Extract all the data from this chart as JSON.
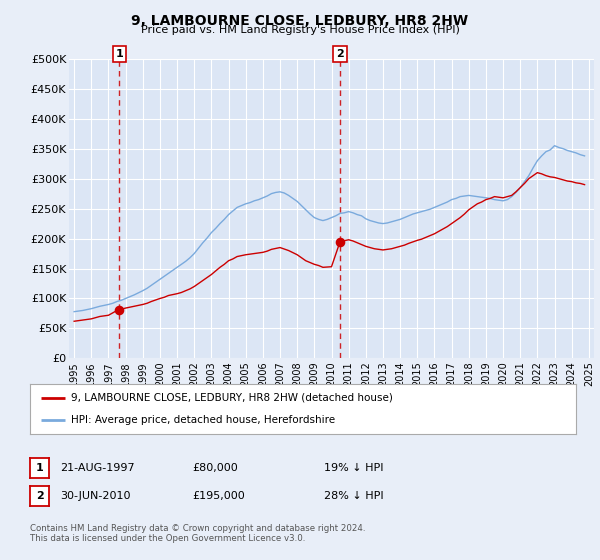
{
  "title": "9, LAMBOURNE CLOSE, LEDBURY, HR8 2HW",
  "subtitle": "Price paid vs. HM Land Registry's House Price Index (HPI)",
  "legend_line1": "9, LAMBOURNE CLOSE, LEDBURY, HR8 2HW (detached house)",
  "legend_line2": "HPI: Average price, detached house, Herefordshire",
  "sale1_date": "21-AUG-1997",
  "sale1_price": "£80,000",
  "sale1_hpi": "19% ↓ HPI",
  "sale1_year": 1997.64,
  "sale1_value": 80000,
  "sale2_date": "30-JUN-2010",
  "sale2_price": "£195,000",
  "sale2_hpi": "28% ↓ HPI",
  "sale2_year": 2010.5,
  "sale2_value": 195000,
  "ylim": [
    0,
    500000
  ],
  "yticks": [
    0,
    50000,
    100000,
    150000,
    200000,
    250000,
    300000,
    350000,
    400000,
    450000,
    500000
  ],
  "xlim_start": 1994.7,
  "xlim_end": 2025.3,
  "bg_color": "#e8eef8",
  "plot_bg_color": "#dce6f5",
  "grid_color": "#ffffff",
  "red_line_color": "#cc0000",
  "blue_line_color": "#7aaadd",
  "vline_color": "#cc0000",
  "footer": "Contains HM Land Registry data © Crown copyright and database right 2024.\nThis data is licensed under the Open Government Licence v3.0.",
  "hpi_years": [
    1995,
    1995.25,
    1995.5,
    1995.75,
    1996,
    1996.25,
    1996.5,
    1996.75,
    1997,
    1997.25,
    1997.5,
    1997.75,
    1998,
    1998.25,
    1998.5,
    1998.75,
    1999,
    1999.25,
    1999.5,
    1999.75,
    2000,
    2000.25,
    2000.5,
    2000.75,
    2001,
    2001.25,
    2001.5,
    2001.75,
    2002,
    2002.25,
    2002.5,
    2002.75,
    2003,
    2003.25,
    2003.5,
    2003.75,
    2004,
    2004.25,
    2004.5,
    2004.75,
    2005,
    2005.25,
    2005.5,
    2005.75,
    2006,
    2006.25,
    2006.5,
    2006.75,
    2007,
    2007.25,
    2007.5,
    2007.75,
    2008,
    2008.25,
    2008.5,
    2008.75,
    2009,
    2009.25,
    2009.5,
    2009.75,
    2010,
    2010.25,
    2010.5,
    2010.75,
    2011,
    2011.25,
    2011.5,
    2011.75,
    2012,
    2012.25,
    2012.5,
    2012.75,
    2013,
    2013.25,
    2013.5,
    2013.75,
    2014,
    2014.25,
    2014.5,
    2014.75,
    2015,
    2015.25,
    2015.5,
    2015.75,
    2016,
    2016.25,
    2016.5,
    2016.75,
    2017,
    2017.25,
    2017.5,
    2017.75,
    2018,
    2018.25,
    2018.5,
    2018.75,
    2019,
    2019.25,
    2019.5,
    2019.75,
    2020,
    2020.25,
    2020.5,
    2020.75,
    2021,
    2021.25,
    2021.5,
    2021.75,
    2022,
    2022.25,
    2022.5,
    2022.75,
    2023,
    2023.25,
    2023.5,
    2023.75,
    2024,
    2024.25,
    2024.5,
    2024.75
  ],
  "hpi_values": [
    78000,
    79000,
    80000,
    81500,
    83000,
    85000,
    87000,
    88500,
    90000,
    92000,
    95000,
    97000,
    100000,
    103000,
    106000,
    109500,
    113000,
    117000,
    122000,
    127000,
    132000,
    137000,
    142000,
    147000,
    152000,
    157000,
    162000,
    168000,
    175000,
    184000,
    193000,
    201000,
    210000,
    217000,
    225000,
    232000,
    240000,
    246000,
    252000,
    255000,
    258000,
    260000,
    263000,
    265000,
    268000,
    271000,
    275000,
    277000,
    278000,
    276000,
    272000,
    267000,
    262000,
    255000,
    248000,
    241000,
    235000,
    232000,
    230000,
    232000,
    235000,
    238000,
    242000,
    243000,
    245000,
    243000,
    240000,
    238000,
    233000,
    230000,
    228000,
    226000,
    225000,
    226000,
    228000,
    230000,
    232000,
    235000,
    238000,
    241000,
    243000,
    245000,
    247000,
    249000,
    252000,
    255000,
    258000,
    261000,
    265000,
    267000,
    270000,
    271000,
    272000,
    271000,
    270000,
    269000,
    268000,
    267000,
    265000,
    264000,
    263000,
    265000,
    270000,
    277000,
    285000,
    295000,
    305000,
    318000,
    330000,
    338000,
    345000,
    348000,
    355000,
    352000,
    350000,
    347000,
    345000,
    343000,
    340000,
    338000
  ],
  "property_years": [
    1995,
    1995.25,
    1995.5,
    1995.75,
    1996,
    1996.25,
    1996.5,
    1996.75,
    1997,
    1997.25,
    1997.5,
    1997.75,
    1998,
    1998.25,
    1998.5,
    1998.75,
    1999,
    1999.25,
    1999.5,
    1999.75,
    2000,
    2000.25,
    2000.5,
    2000.75,
    2001,
    2001.25,
    2001.5,
    2001.75,
    2002,
    2002.25,
    2002.5,
    2002.75,
    2003,
    2003.25,
    2003.5,
    2003.75,
    2004,
    2004.25,
    2004.5,
    2004.75,
    2005,
    2005.25,
    2005.5,
    2005.75,
    2006,
    2006.25,
    2006.5,
    2006.75,
    2007,
    2007.25,
    2007.5,
    2007.75,
    2008,
    2008.25,
    2008.5,
    2008.75,
    2009,
    2009.25,
    2009.5,
    2009.75,
    2010,
    2010.25,
    2010.5,
    2010.75,
    2011,
    2011.25,
    2011.5,
    2011.75,
    2012,
    2012.25,
    2012.5,
    2012.75,
    2013,
    2013.25,
    2013.5,
    2013.75,
    2014,
    2014.25,
    2014.5,
    2014.75,
    2015,
    2015.25,
    2015.5,
    2015.75,
    2016,
    2016.25,
    2016.5,
    2016.75,
    2017,
    2017.25,
    2017.5,
    2017.75,
    2018,
    2018.25,
    2018.5,
    2018.75,
    2019,
    2019.25,
    2019.5,
    2019.75,
    2020,
    2020.25,
    2020.5,
    2020.75,
    2021,
    2021.25,
    2021.5,
    2021.75,
    2022,
    2022.25,
    2022.5,
    2022.75,
    2023,
    2023.25,
    2023.5,
    2023.75,
    2024,
    2024.25,
    2024.5,
    2024.75
  ],
  "property_values": [
    62000,
    63000,
    64000,
    65000,
    66000,
    68000,
    70000,
    71000,
    72000,
    76000,
    80000,
    82000,
    84000,
    85500,
    87000,
    88500,
    90000,
    92000,
    95000,
    97500,
    100000,
    102000,
    105000,
    106500,
    108000,
    110000,
    113000,
    116000,
    120000,
    125000,
    130000,
    135000,
    140000,
    146000,
    152000,
    157000,
    163000,
    166000,
    170000,
    171500,
    173000,
    174000,
    175000,
    176000,
    177000,
    179000,
    182000,
    183500,
    185000,
    182500,
    180000,
    176500,
    173000,
    168000,
    163000,
    160000,
    157000,
    155000,
    152000,
    152500,
    153000,
    174000,
    195000,
    196500,
    198000,
    196000,
    193000,
    190000,
    187000,
    185000,
    183000,
    182000,
    181000,
    182000,
    183000,
    185000,
    187000,
    189000,
    192000,
    194500,
    197000,
    199000,
    202000,
    205000,
    208000,
    212000,
    216000,
    220000,
    225000,
    230000,
    235000,
    241000,
    248000,
    253000,
    258000,
    261000,
    265000,
    267000,
    270000,
    269000,
    268000,
    270000,
    272000,
    278000,
    285000,
    292000,
    300000,
    305000,
    310000,
    308000,
    305000,
    303000,
    302000,
    300000,
    298000,
    296000,
    295000,
    293000,
    292000,
    290000
  ]
}
